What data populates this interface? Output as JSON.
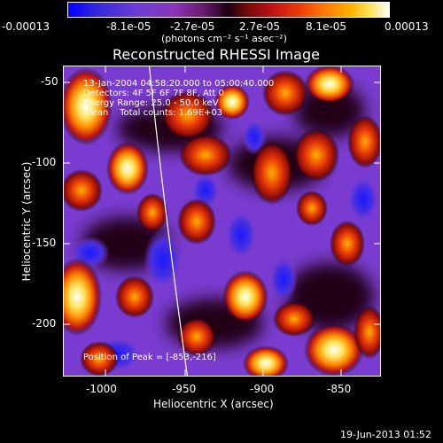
{
  "colorbar": {
    "tick_labels": [
      "-0.00013",
      "-8.1e-05",
      "-2.7e-05",
      "2.7e-05",
      "8.1e-05",
      "0.00013"
    ],
    "units_label": "(photons cm⁻² s⁻¹ asec⁻²)"
  },
  "title": "Reconstructed RHESSI Image",
  "info": {
    "time_range": "13-Jan-2004 04:58:20.000 to 05:00:40.000",
    "detectors": "Detectors: 4F 5F 6F 7F 8F, Att 0",
    "energy_range": "Energy Range: 25.0 - 50.0 keV",
    "method": "Clean    Total counts: 1.69E+03"
  },
  "peak_label": "Position of Peak = [-853,-216]",
  "x_axis": {
    "label": "Heliocentric X (arcsec)",
    "ticks": [
      "-1000",
      "-950",
      "-900",
      "-850"
    ]
  },
  "y_axis": {
    "label": "Heliocentric Y (arcsec)",
    "ticks": [
      "-50",
      "-100",
      "-150",
      "-200"
    ]
  },
  "footer_date": "19-Jun-2013 01:52",
  "colors": {
    "background": "#000000",
    "low": "#0000ff",
    "mid": "#7a3cd0",
    "high": "#ffffff",
    "warm": "#ff8a00"
  }
}
